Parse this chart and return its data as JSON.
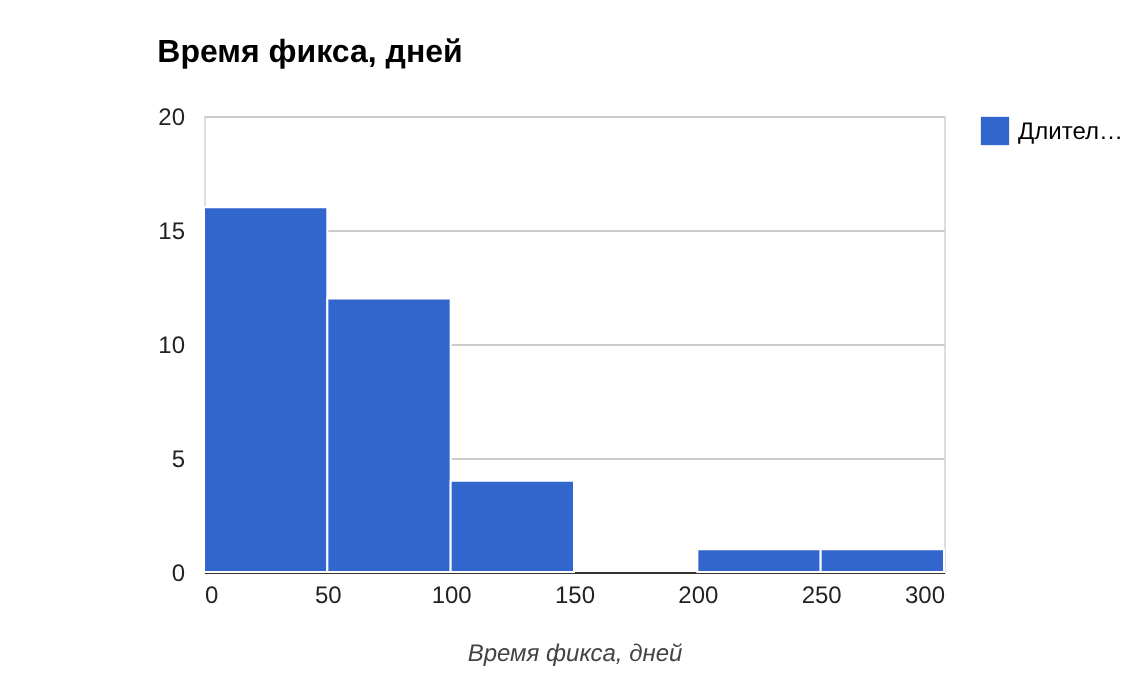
{
  "chart_data": {
    "type": "histogram",
    "title": "Время фикса, дней",
    "xlabel": "Время фикса, дней",
    "bins": [
      0,
      50,
      100,
      150,
      200,
      250,
      300
    ],
    "series": [
      {
        "name": "Длител…",
        "color": "#3366cc",
        "values": [
          16,
          12,
          4,
          0,
          1,
          1
        ]
      }
    ],
    "xlim": [
      0,
      300
    ],
    "xticks": [
      0,
      50,
      100,
      150,
      200,
      250,
      300
    ],
    "ylim": [
      0,
      20
    ],
    "yticks": [
      0,
      5,
      10,
      15,
      20
    ],
    "grid": "y",
    "legend": "top right"
  }
}
